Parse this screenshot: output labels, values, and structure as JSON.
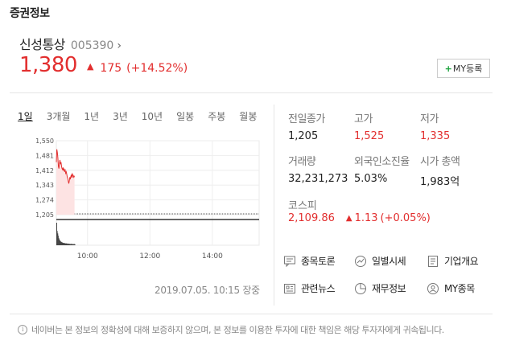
{
  "section_title": "증권정보",
  "stock": {
    "name": "신성통상",
    "code": "005390",
    "chevron": "›",
    "price": "1,380",
    "direction_icon": "▲",
    "change": "175",
    "change_pct": "(+14.52%)",
    "up_color": "#e22e2e"
  },
  "my_button": {
    "plus": "+",
    "label": "MY등록"
  },
  "tabs": [
    {
      "label": "1일",
      "active": true
    },
    {
      "label": "3개월"
    },
    {
      "label": "1년"
    },
    {
      "label": "3년"
    },
    {
      "label": "10년"
    },
    {
      "label": "일봉"
    },
    {
      "label": "주봉"
    },
    {
      "label": "월봉"
    }
  ],
  "chart_data": {
    "type": "line",
    "title": "",
    "y_ticks": [
      "1,550",
      "1,481",
      "1,412",
      "1,343",
      "1,274",
      "1,205"
    ],
    "ylim": [
      1205,
      1550
    ],
    "x_ticks": [
      "10:00",
      "12:00",
      "14:00"
    ],
    "xlim_minutes": [
      540,
      930
    ],
    "baseline": 1205,
    "series": [
      {
        "x": [
          540,
          541,
          542,
          543,
          544,
          545,
          546,
          547,
          548,
          549,
          550,
          551,
          552,
          553,
          554,
          555,
          556,
          557,
          558,
          559,
          560,
          561,
          562,
          563,
          564,
          565,
          566,
          567,
          568,
          569,
          570,
          571,
          572,
          573,
          574,
          575
        ],
        "values": [
          1450,
          1510,
          1495,
          1470,
          1430,
          1420,
          1445,
          1460,
          1440,
          1450,
          1430,
          1420,
          1415,
          1425,
          1410,
          1420,
          1405,
          1412,
          1398,
          1405,
          1395,
          1380,
          1375,
          1360,
          1350,
          1365,
          1380,
          1370,
          1385,
          1390,
          1378,
          1395,
          1390,
          1380,
          1385,
          1380
        ]
      }
    ],
    "volume": [
      95,
      60,
      50,
      40,
      30,
      25,
      20,
      18,
      15,
      14,
      12,
      12,
      10,
      10,
      9,
      8,
      9,
      7,
      7,
      8,
      6,
      6,
      7,
      6,
      5,
      6,
      5,
      5,
      6,
      5,
      4,
      5,
      5,
      4,
      5,
      4
    ],
    "grid": true,
    "line_color": "#e22e2e",
    "fill_color": "#fde3e3"
  },
  "stats": {
    "prev_close_label": "전일종가",
    "prev_close": "1,205",
    "high_label": "고가",
    "high": "1,525",
    "low_label": "저가",
    "low": "1,335",
    "volume_label": "거래량",
    "volume": "32,231,273",
    "foreign_label": "외국인소진율",
    "foreign": "5.03%",
    "mktcap_label": "시가 총액",
    "mktcap": "1,983억"
  },
  "kospi": {
    "label": "코스피",
    "value": "2,109.86",
    "direction_icon": "▲",
    "change": "1.13",
    "change_pct": "(+0.05%)"
  },
  "links": [
    {
      "label": "종목토론",
      "icon": "chat-icon"
    },
    {
      "label": "일별시세",
      "icon": "trend-icon"
    },
    {
      "label": "기업개요",
      "icon": "document-icon"
    },
    {
      "label": "관련뉴스",
      "icon": "news-icon"
    },
    {
      "label": "재무정보",
      "icon": "pie-icon"
    },
    {
      "label": "MY종목",
      "icon": "person-icon"
    }
  ],
  "timestamp": "2019.07.05. 10:15 장중",
  "notice": {
    "icon": "i",
    "text": "네이버는 본 정보의 정확성에 대해 보증하지 않으며, 본 정보를 이용한 투자에 대한 책임은 해당 투자자에게 귀속됩니다."
  }
}
